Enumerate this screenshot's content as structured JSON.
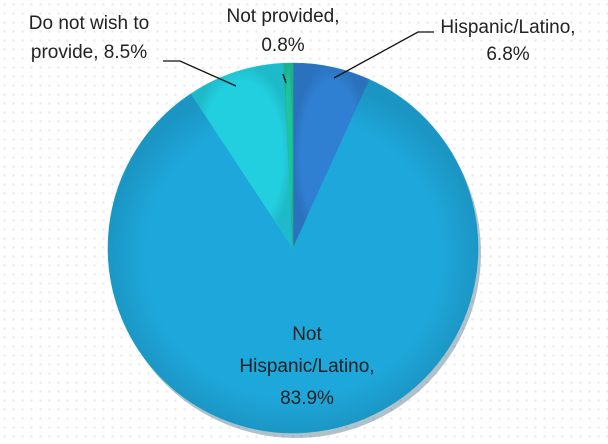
{
  "chart_data": {
    "type": "pie",
    "title": "",
    "slices": [
      {
        "label": [
          "Hispanic/Latino,",
          "6.8%"
        ],
        "value": 6.8,
        "color": "#2f7fd2"
      },
      {
        "label": [
          "Not",
          "Hispanic/Latino,",
          "83.9%"
        ],
        "value": 83.9,
        "color": "#1ea7da"
      },
      {
        "label": [
          "Do not wish to",
          "provide, 8.5%"
        ],
        "value": 8.5,
        "color": "#22cfdf"
      },
      {
        "label": [
          "Not provided,",
          "0.8%"
        ],
        "value": 0.8,
        "color": "#1fc39a"
      }
    ],
    "legend": "none",
    "start_angle_deg": 0,
    "direction": "clockwise"
  }
}
